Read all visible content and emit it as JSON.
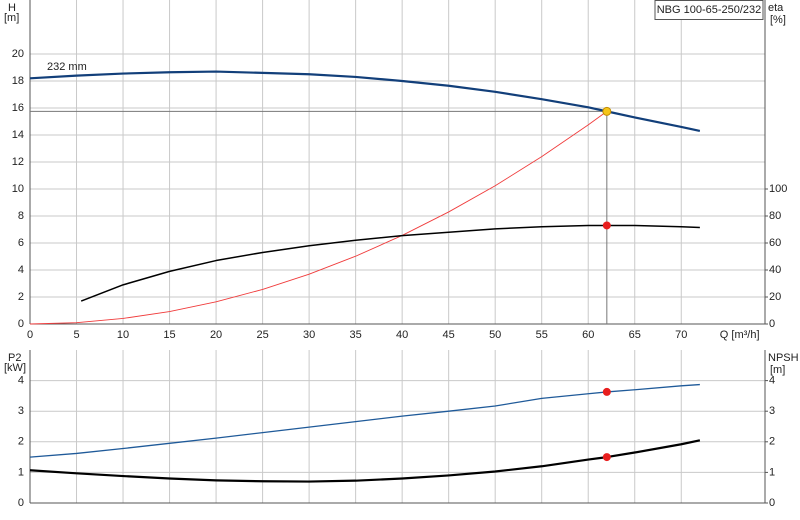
{
  "chart_data": [
    {
      "type": "line",
      "title": "NBG 100-65-250/232",
      "annotation": "232 mm",
      "y_label": "H",
      "y_unit": "[m]",
      "y2_label": "eta",
      "y2_unit": "[%]",
      "x_label": "Q [m³/h]",
      "xlim": [
        0,
        79
      ],
      "xticks": [
        0,
        5,
        10,
        15,
        20,
        25,
        30,
        35,
        40,
        45,
        50,
        55,
        60,
        65,
        70
      ],
      "ylim": [
        0,
        24
      ],
      "yticks": [
        0,
        2,
        4,
        6,
        8,
        10,
        12,
        14,
        16,
        18,
        20
      ],
      "y2lim": [
        0,
        240
      ],
      "y2ticks": [
        0,
        20,
        40,
        60,
        80,
        100
      ],
      "grid": true,
      "series": [
        {
          "color": "#123f7a",
          "width": 2.2,
          "x": [
            0,
            5,
            10,
            15,
            20,
            25,
            30,
            35,
            40,
            45,
            50,
            55,
            60,
            62,
            65,
            70,
            72
          ],
          "values": [
            18.2,
            18.4,
            18.55,
            18.65,
            18.7,
            18.6,
            18.5,
            18.3,
            18.0,
            17.65,
            17.2,
            16.65,
            16.05,
            15.75,
            15.3,
            14.6,
            14.3
          ]
        },
        {
          "color": "#f03c3c",
          "width": 0.9,
          "x": [
            0,
            5,
            10,
            15,
            20,
            25,
            30,
            35,
            40,
            45,
            50,
            55,
            60,
            62
          ],
          "values": [
            0,
            0.1,
            0.41,
            0.92,
            1.64,
            2.56,
            3.69,
            5.02,
            6.56,
            8.3,
            10.24,
            12.4,
            14.75,
            15.75
          ]
        },
        {
          "color": "#000000",
          "width": 1.5,
          "axis": "y2",
          "x": [
            5.5,
            10,
            15,
            20,
            25,
            30,
            35,
            40,
            45,
            50,
            55,
            60,
            62,
            65,
            70,
            72
          ],
          "values": [
            17,
            29,
            39,
            47,
            53,
            58,
            62,
            65.5,
            68,
            70.5,
            72,
            73,
            73,
            73,
            72,
            71.5
          ]
        }
      ],
      "points": [
        {
          "x": 62,
          "y": 15.75,
          "color": "#f5c518",
          "crosshair": true
        },
        {
          "x": 62,
          "y": 73,
          "axis": "y2",
          "color": "#e81e1e"
        }
      ]
    },
    {
      "type": "line",
      "y_label": "P2",
      "y_unit": "[kW]",
      "y2_label": "NPSH",
      "y2_unit": "[m]",
      "xlim": [
        0,
        79
      ],
      "xticks": [
        0,
        5,
        10,
        15,
        20,
        25,
        30,
        35,
        40,
        45,
        50,
        55,
        60,
        65,
        70
      ],
      "ylim": [
        0,
        5
      ],
      "yticks": [
        0,
        1,
        2,
        3,
        4
      ],
      "y2lim": [
        0,
        5
      ],
      "y2ticks": [
        0,
        1,
        2,
        3,
        4
      ],
      "grid": true,
      "series": [
        {
          "color": "#1f5a99",
          "width": 1.3,
          "x": [
            0,
            5,
            10,
            15,
            20,
            25,
            30,
            35,
            40,
            45,
            50,
            55,
            60,
            62,
            65,
            70,
            72
          ],
          "values": [
            1.5,
            1.62,
            1.78,
            1.95,
            2.12,
            2.3,
            2.48,
            2.66,
            2.84,
            3.0,
            3.17,
            3.42,
            3.57,
            3.63,
            3.7,
            3.83,
            3.87
          ]
        },
        {
          "color": "#000000",
          "width": 2.2,
          "axis": "y2",
          "x": [
            0,
            5,
            10,
            15,
            20,
            25,
            30,
            35,
            40,
            45,
            50,
            55,
            60,
            62,
            65,
            70,
            72
          ],
          "values": [
            1.07,
            0.97,
            0.88,
            0.8,
            0.74,
            0.71,
            0.7,
            0.73,
            0.8,
            0.9,
            1.03,
            1.2,
            1.42,
            1.5,
            1.65,
            1.92,
            2.05
          ]
        }
      ],
      "points": [
        {
          "x": 62,
          "y": 3.63,
          "color": "#e81e1e"
        },
        {
          "x": 62,
          "y": 1.5,
          "axis": "y2",
          "color": "#e81e1e"
        }
      ]
    }
  ]
}
